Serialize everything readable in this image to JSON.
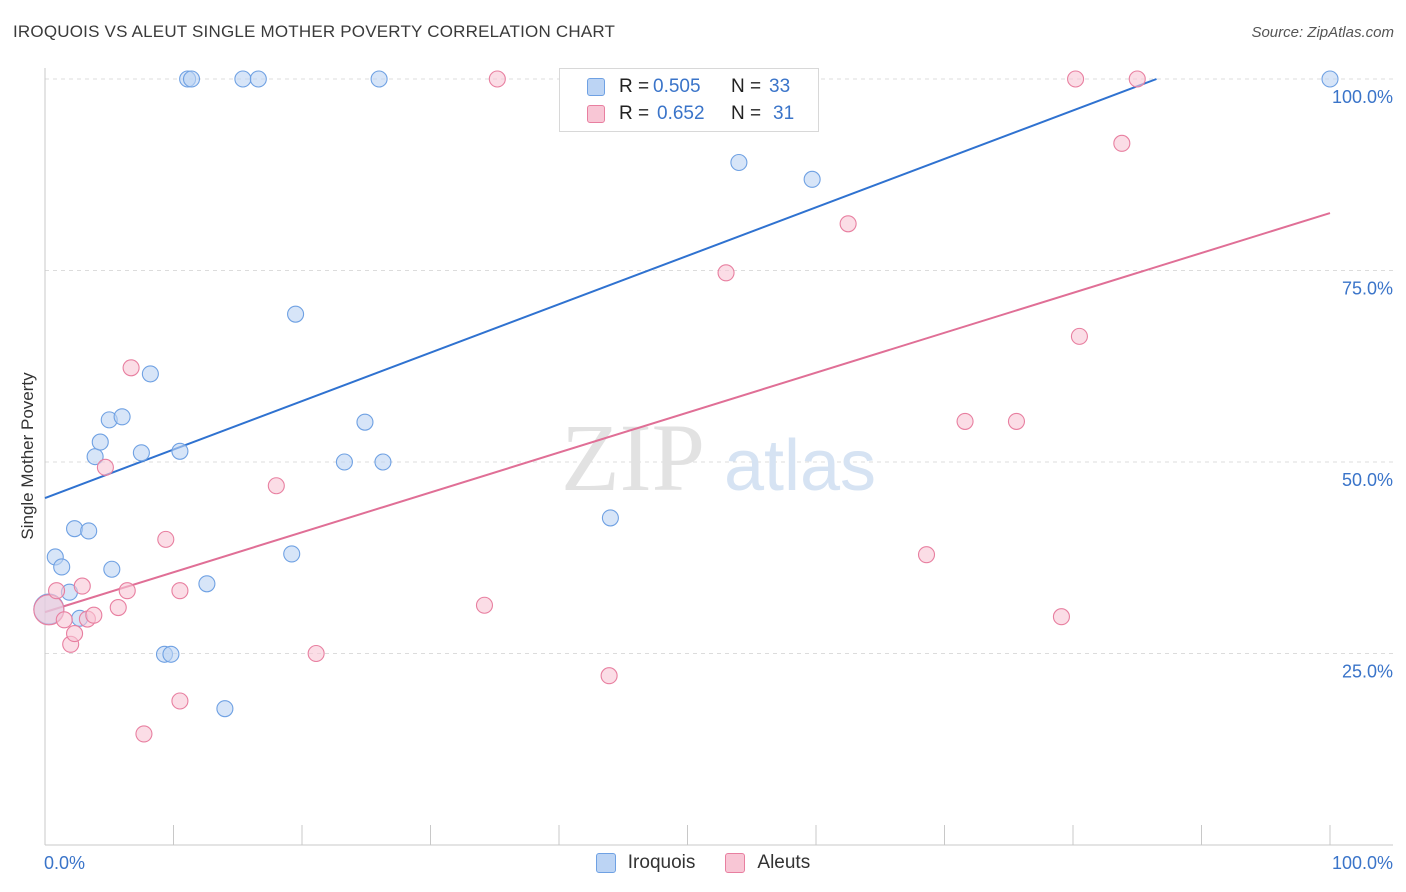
{
  "title": "IROQUOIS VS ALEUT SINGLE MOTHER POVERTY CORRELATION CHART",
  "source": "Source: ZipAtlas.com",
  "watermark": {
    "zip": "ZIP",
    "atlas": "atlas"
  },
  "legend_stats": [
    {
      "r_label": "R =",
      "r_value": "0.505",
      "n_label": "N =",
      "n_value": "33"
    },
    {
      "r_label": "R =",
      "r_value": "0.652",
      "n_label": "N =",
      "n_value": "31"
    }
  ],
  "chart_data": {
    "type": "scatter",
    "title": "IROQUOIS VS ALEUT SINGLE MOTHER POVERTY CORRELATION CHART",
    "xlabel": "",
    "ylabel": "Single Mother Poverty",
    "xlim": [
      0,
      100
    ],
    "ylim": [
      0,
      100
    ],
    "x_tick_labels": [
      "0.0%",
      "100.0%"
    ],
    "y_tick_labels": [
      {
        "value": 25,
        "label": "25.0%"
      },
      {
        "value": 50,
        "label": "50.0%"
      },
      {
        "value": 75,
        "label": "75.0%"
      },
      {
        "value": 100,
        "label": "100.0%"
      }
    ],
    "series": [
      {
        "name": "Iroquois",
        "color": "#6fa1e3",
        "fill": "#bcd4f4",
        "trend": {
          "x0": 0,
          "y0": 45.3,
          "x1": 86.5,
          "y1": 100
        },
        "points": [
          [
            0.3,
            30.8
          ],
          [
            0.8,
            37.6
          ],
          [
            1.3,
            36.3
          ],
          [
            1.9,
            33.0
          ],
          [
            2.3,
            41.3
          ],
          [
            2.7,
            29.6
          ],
          [
            3.4,
            41.0
          ],
          [
            3.9,
            50.7
          ],
          [
            4.3,
            52.6
          ],
          [
            5.0,
            55.5
          ],
          [
            5.2,
            36.0
          ],
          [
            6.0,
            55.9
          ],
          [
            7.5,
            51.2
          ],
          [
            8.2,
            61.5
          ],
          [
            9.3,
            24.9
          ],
          [
            9.8,
            24.9
          ],
          [
            10.5,
            51.4
          ],
          [
            11.1,
            100
          ],
          [
            11.4,
            100
          ],
          [
            12.6,
            34.1
          ],
          [
            14.0,
            17.8
          ],
          [
            15.4,
            100
          ],
          [
            16.6,
            100
          ],
          [
            19.2,
            38.0
          ],
          [
            19.5,
            69.3
          ],
          [
            23.3,
            50.0
          ],
          [
            24.9,
            55.2
          ],
          [
            26.0,
            100
          ],
          [
            26.3,
            50.0
          ],
          [
            44.0,
            42.7
          ],
          [
            54.0,
            89.1
          ],
          [
            59.7,
            86.9
          ],
          [
            100,
            100
          ]
        ]
      },
      {
        "name": "Aleuts",
        "color": "#e87fa0",
        "fill": "#f8c6d5",
        "trend": {
          "x0": 0,
          "y0": 30.4,
          "x1": 100,
          "y1": 82.5
        },
        "points": [
          [
            0.3,
            30.7
          ],
          [
            0.9,
            33.2
          ],
          [
            1.5,
            29.4
          ],
          [
            2.0,
            26.2
          ],
          [
            2.3,
            27.6
          ],
          [
            2.9,
            33.8
          ],
          [
            3.3,
            29.5
          ],
          [
            3.8,
            30.0
          ],
          [
            4.7,
            49.3
          ],
          [
            5.7,
            31.0
          ],
          [
            6.4,
            33.2
          ],
          [
            6.7,
            62.3
          ],
          [
            7.7,
            14.5
          ],
          [
            9.4,
            39.9
          ],
          [
            10.5,
            33.2
          ],
          [
            10.5,
            18.8
          ],
          [
            18.0,
            46.9
          ],
          [
            21.1,
            25.0
          ],
          [
            34.2,
            31.3
          ],
          [
            35.2,
            100
          ],
          [
            43.9,
            22.1
          ],
          [
            53.0,
            74.7
          ],
          [
            62.5,
            81.1
          ],
          [
            68.6,
            37.9
          ],
          [
            71.6,
            55.3
          ],
          [
            75.6,
            55.3
          ],
          [
            79.1,
            29.8
          ],
          [
            80.2,
            100
          ],
          [
            80.5,
            66.4
          ],
          [
            83.8,
            91.6
          ],
          [
            85.0,
            100
          ]
        ]
      }
    ]
  }
}
